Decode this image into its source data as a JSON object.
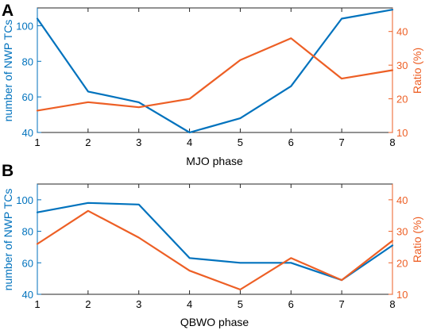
{
  "colors": {
    "left_axis": "#0072BD",
    "right_axis": "#ED5F25",
    "frame": "#262626",
    "ink": "#000000"
  },
  "chart_data": [
    {
      "type": "line",
      "panel_label": "A",
      "xlabel": "MJO phase",
      "ylabel_left": "number of NWP TCs",
      "ylabel_right": "Ratio (%)",
      "x": [
        1,
        2,
        3,
        4,
        5,
        6,
        7,
        8
      ],
      "xlim": [
        1,
        8
      ],
      "x_ticks": [
        "1",
        "2",
        "3",
        "4",
        "5",
        "6",
        "7",
        "8"
      ],
      "ylim_left": [
        40,
        110
      ],
      "y_ticks_left": [
        "40",
        "60",
        "80",
        "100"
      ],
      "ylim_right": [
        10,
        47
      ],
      "y_ticks_right": [
        "10",
        "20",
        "30",
        "40"
      ],
      "grid": false,
      "series": [
        {
          "axis": "left",
          "color": "#0072BD",
          "values": [
            104,
            63,
            57,
            40,
            48,
            66,
            104,
            109
          ]
        },
        {
          "axis": "right",
          "color": "#ED5F25",
          "values": [
            16.5,
            19,
            17.5,
            20,
            31.5,
            38,
            26,
            28.5
          ]
        }
      ]
    },
    {
      "type": "line",
      "panel_label": "B",
      "xlabel": "QBWO phase",
      "ylabel_left": "number of NWP TCs",
      "ylabel_right": "Ratio (%)",
      "x": [
        1,
        2,
        3,
        4,
        5,
        6,
        7,
        8
      ],
      "xlim": [
        1,
        8
      ],
      "x_ticks": [
        "1",
        "2",
        "3",
        "4",
        "5",
        "6",
        "7",
        "8"
      ],
      "ylim_left": [
        40,
        110
      ],
      "y_ticks_left": [
        "40",
        "60",
        "80",
        "100"
      ],
      "ylim_right": [
        10,
        45
      ],
      "y_ticks_right": [
        "10",
        "20",
        "30",
        "40"
      ],
      "grid": false,
      "series": [
        {
          "axis": "left",
          "color": "#0072BD",
          "values": [
            92,
            98,
            97,
            63,
            60,
            60,
            49,
            71
          ]
        },
        {
          "axis": "right",
          "color": "#ED5F25",
          "values": [
            26,
            36.5,
            28,
            17.5,
            11.5,
            21.5,
            14.5,
            27
          ]
        }
      ]
    }
  ]
}
